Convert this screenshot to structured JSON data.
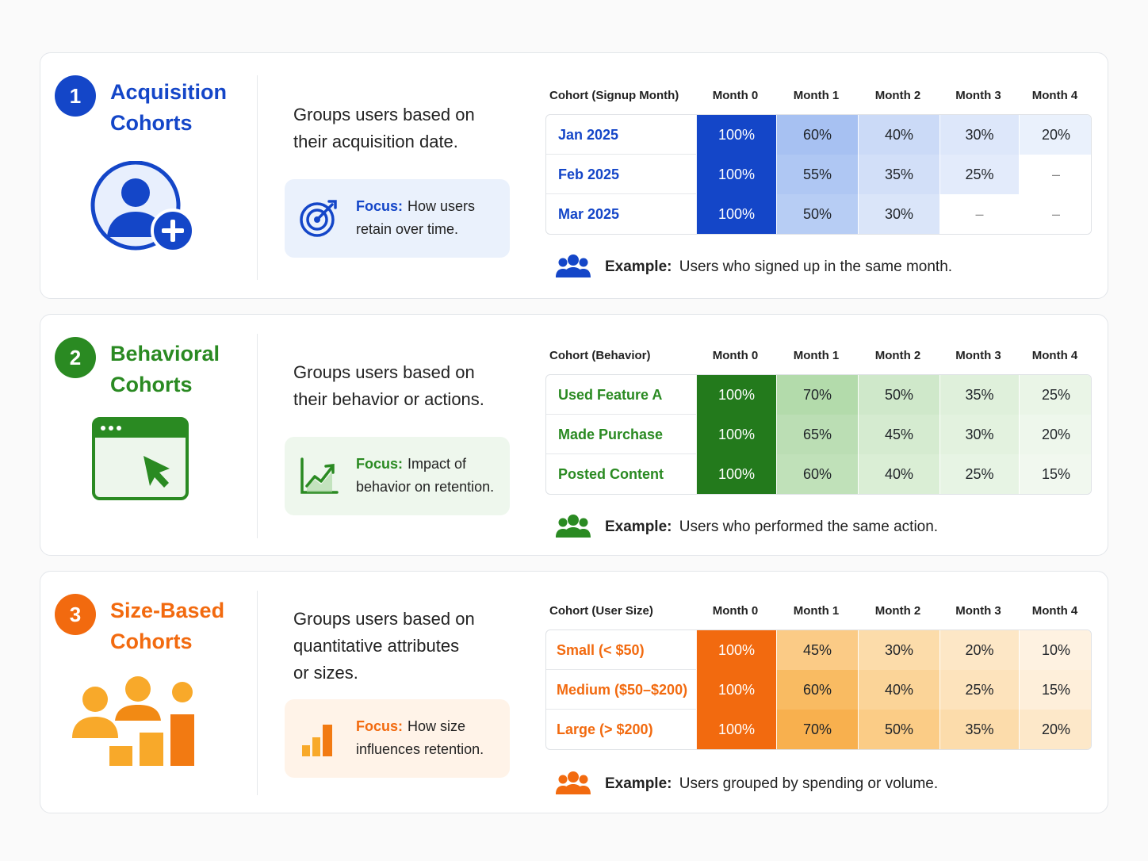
{
  "headers": [
    "Month 0",
    "Month 1",
    "Month 2",
    "Month 3",
    "Month 4"
  ],
  "sections": [
    {
      "number": "1",
      "title_line1": "Acquisition",
      "title_line2": "Cohorts",
      "color": "#1446c8",
      "desc_line1": "Groups users based on",
      "desc_line2": "their acquisition date.",
      "desc_line3": "",
      "focus_label": "Focus:",
      "focus_text": "How users retain over time.",
      "table_header": "Cohort (Signup Month)",
      "rows": [
        {
          "label": "Jan 2025",
          "cells": [
            "100%",
            "60%",
            "40%",
            "30%",
            "20%"
          ]
        },
        {
          "label": "Feb 2025",
          "cells": [
            "100%",
            "55%",
            "35%",
            "25%",
            "–"
          ]
        },
        {
          "label": "Mar 2025",
          "cells": [
            "100%",
            "50%",
            "30%",
            "–",
            "–"
          ]
        }
      ],
      "example_label": "Example:",
      "example_text": "Users who signed up in the same month."
    },
    {
      "number": "2",
      "title_line1": "Behavioral",
      "title_line2": "Cohorts",
      "color": "#2a8a22",
      "desc_line1": "Groups users based on",
      "desc_line2": "their behavior or actions.",
      "desc_line3": "",
      "focus_label": "Focus:",
      "focus_text": "Impact of behavior on retention.",
      "table_header": "Cohort (Behavior)",
      "rows": [
        {
          "label": "Used Feature A",
          "cells": [
            "100%",
            "70%",
            "50%",
            "35%",
            "25%"
          ]
        },
        {
          "label": "Made Purchase",
          "cells": [
            "100%",
            "65%",
            "45%",
            "30%",
            "20%"
          ]
        },
        {
          "label": "Posted Content",
          "cells": [
            "100%",
            "60%",
            "40%",
            "25%",
            "15%"
          ]
        }
      ],
      "example_label": "Example:",
      "example_text": "Users who performed the same action."
    },
    {
      "number": "3",
      "title_line1": "Size-Based",
      "title_line2": "Cohorts",
      "color": "#f26a0f",
      "desc_line1": "Groups users based on",
      "desc_line2": "quantitative attributes",
      "desc_line3": "or sizes.",
      "focus_label": "Focus:",
      "focus_text": "How size influences retention.",
      "table_header": "Cohort (User Size)",
      "rows": [
        {
          "label": "Small (< $50)",
          "cells": [
            "100%",
            "45%",
            "30%",
            "20%",
            "10%"
          ]
        },
        {
          "label": "Medium ($50–$200)",
          "cells": [
            "100%",
            "60%",
            "40%",
            "25%",
            "15%"
          ]
        },
        {
          "label": "Large (> $200)",
          "cells": [
            "100%",
            "70%",
            "50%",
            "35%",
            "20%"
          ]
        }
      ],
      "example_label": "Example:",
      "example_text": "Users grouped by spending or volume."
    }
  ]
}
